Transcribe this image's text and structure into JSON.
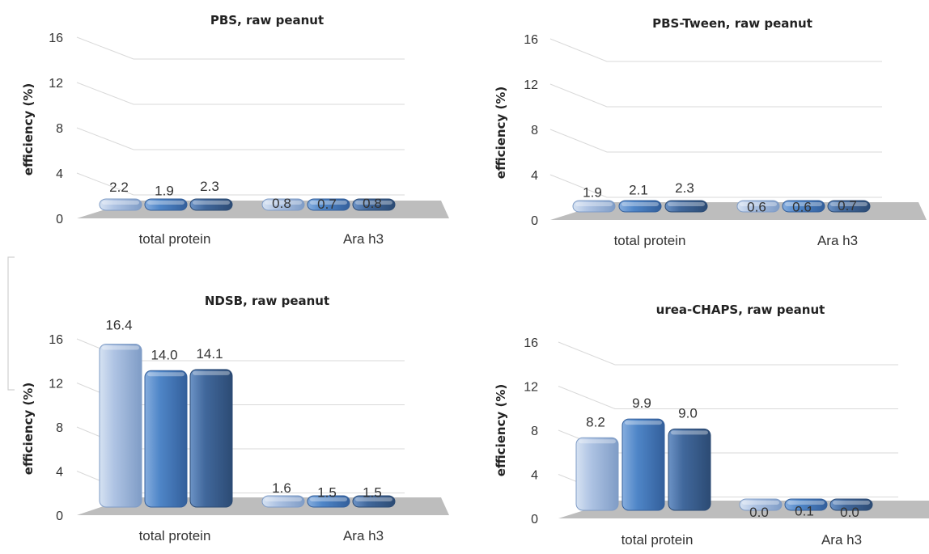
{
  "colors": {
    "series": [
      "#aec3e3",
      "#4f86c8",
      "#41689c"
    ],
    "series_light": [
      "#d6e2f2",
      "#86adde",
      "#6c93c6"
    ],
    "series_dark": [
      "#7f9cc6",
      "#335f9b",
      "#2c4b74"
    ]
  },
  "chart_data": [
    {
      "type": "bar",
      "title": "PBS, raw peanut",
      "ylabel": "efficiency (%)",
      "categories": [
        "total protein",
        "Ara h3"
      ],
      "yticks": [
        "0",
        "4",
        "8",
        "12",
        "16"
      ],
      "ylim": [
        0,
        16
      ],
      "grid": true,
      "legend": "none",
      "series": [
        {
          "values": [
            2.2,
            0.8
          ],
          "labels": [
            "2.2",
            "0.8"
          ]
        },
        {
          "values": [
            1.9,
            0.7
          ],
          "labels": [
            "1.9",
            "0.7"
          ]
        },
        {
          "values": [
            2.3,
            0.8
          ],
          "labels": [
            "2.3",
            "0.8"
          ]
        }
      ]
    },
    {
      "type": "bar",
      "title": "PBS-Tween, raw peanut",
      "ylabel": "efficiency (%)",
      "categories": [
        "total protein",
        "Ara h3"
      ],
      "yticks": [
        "0",
        "4",
        "8",
        "12",
        "16"
      ],
      "ylim": [
        0,
        16
      ],
      "grid": true,
      "legend": "none",
      "series": [
        {
          "values": [
            1.9,
            0.6
          ],
          "labels": [
            "1.9",
            "0.6"
          ]
        },
        {
          "values": [
            2.1,
            0.6
          ],
          "labels": [
            "2.1",
            "0.6"
          ]
        },
        {
          "values": [
            2.3,
            0.7
          ],
          "labels": [
            "2.3",
            "0.7"
          ]
        }
      ]
    },
    {
      "type": "bar",
      "title": "NDSB, raw peanut",
      "ylabel": "efficiency (%)",
      "categories": [
        "total protein",
        "Ara h3"
      ],
      "yticks": [
        "0",
        "4",
        "8",
        "12",
        "16"
      ],
      "ylim": [
        0,
        16
      ],
      "grid": true,
      "legend": "none",
      "series": [
        {
          "values": [
            16.4,
            1.6
          ],
          "labels": [
            "16.4",
            "1.6"
          ]
        },
        {
          "values": [
            14.0,
            1.5
          ],
          "labels": [
            "14.0",
            "1.5"
          ]
        },
        {
          "values": [
            14.1,
            1.5
          ],
          "labels": [
            "14.1",
            "1.5"
          ]
        }
      ]
    },
    {
      "type": "bar",
      "title": "urea-CHAPS, raw peanut",
      "ylabel": "efficiency (%)",
      "categories": [
        "total protein",
        "Ara h3"
      ],
      "yticks": [
        "0",
        "4",
        "8",
        "12",
        "16"
      ],
      "ylim": [
        0,
        16
      ],
      "grid": true,
      "legend": "none",
      "series": [
        {
          "values": [
            8.2,
            0.0
          ],
          "labels": [
            "8.2",
            "0.0"
          ]
        },
        {
          "values": [
            9.9,
            0.1
          ],
          "labels": [
            "9.9",
            "0.1"
          ]
        },
        {
          "values": [
            9.0,
            0.0
          ],
          "labels": [
            "9.0",
            "0.0"
          ]
        }
      ]
    }
  ]
}
